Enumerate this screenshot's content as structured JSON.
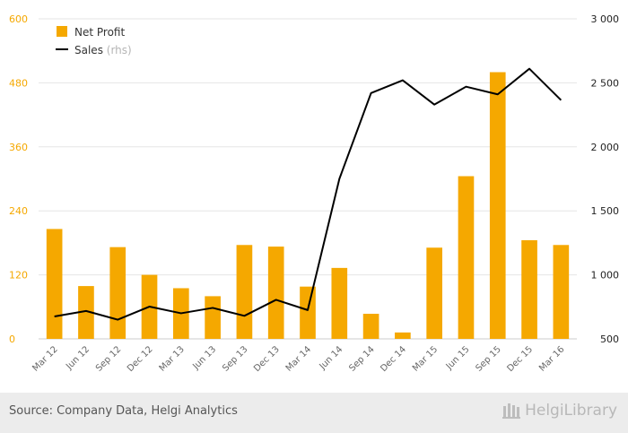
{
  "chart_data": {
    "type": "bar+line",
    "categories": [
      "Mar 12",
      "Jun 12",
      "Sep 12",
      "Dec 12",
      "Mar 13",
      "Jun 13",
      "Sep 13",
      "Dec 13",
      "Mar 14",
      "Jun 14",
      "Sep 14",
      "Dec 14",
      "Mar 15",
      "Jun 15",
      "Sep 15",
      "Dec 15",
      "Mar 16"
    ],
    "series": [
      {
        "name": "Net Profit",
        "type": "bar",
        "axis": "left",
        "color": "#f5a800",
        "values": [
          206,
          99,
          172,
          120,
          95,
          80,
          176,
          173,
          98,
          133,
          47,
          12,
          171,
          305,
          500,
          185,
          176
        ]
      },
      {
        "name": "Sales",
        "legend_suffix": "(rhs)",
        "type": "line",
        "axis": "right",
        "color": "#000000",
        "values": [
          675,
          718,
          650,
          752,
          700,
          742,
          680,
          805,
          725,
          1750,
          2420,
          2520,
          2330,
          2470,
          2410,
          2610,
          2365
        ]
      }
    ],
    "y_left": {
      "min": 0,
      "max": 600,
      "ticks": [
        "0",
        "120",
        "240",
        "360",
        "480",
        "600"
      ],
      "tick_values": [
        0,
        120,
        240,
        360,
        480,
        600
      ],
      "tick_color": "#f5a800"
    },
    "y_right": {
      "min": 500,
      "max": 3000,
      "ticks": [
        "500",
        "1 000",
        "1 500",
        "2 000",
        "2 500",
        "3 000"
      ],
      "tick_values": [
        500,
        1000,
        1500,
        2000,
        2500,
        3000
      ]
    },
    "grid": true,
    "legend_position": "top-left"
  },
  "footer": {
    "source": "Source: Company Data, Helgi Analytics",
    "brand": "HelgiLibrary"
  }
}
